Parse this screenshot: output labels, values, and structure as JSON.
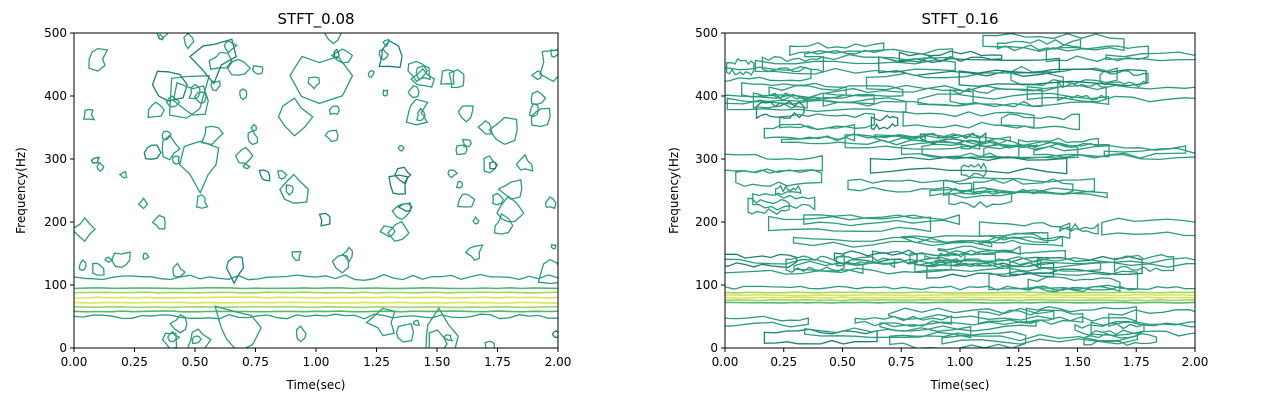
{
  "chart_data": [
    {
      "type": "contour",
      "title": "STFT_0.08",
      "xlabel": "Time(sec)",
      "ylabel": "Frequency(Hz)",
      "xlim": [
        0,
        2
      ],
      "ylim": [
        0,
        500
      ],
      "x_ticks": [
        "0.00",
        "0.25",
        "0.50",
        "0.75",
        "1.00",
        "1.25",
        "1.50",
        "1.75",
        "2.00"
      ],
      "y_ticks": [
        "0",
        "100",
        "200",
        "300",
        "400",
        "500"
      ],
      "colormap": "viridis",
      "contour_colors": [
        "#1b7f79",
        "#2a9d7a",
        "#57b86c",
        "#a4d466",
        "#d8e65a"
      ],
      "dominant_band_hz": [
        55,
        100
      ],
      "dominant_band_lines_hz": [
        58,
        65,
        72,
        80,
        88,
        95
      ],
      "noise_floor_boundary_hz": 112
    },
    {
      "type": "contour",
      "title": "STFT_0.16",
      "xlabel": "Time(sec)",
      "ylabel": "Frequency(Hz)",
      "xlim": [
        0,
        2
      ],
      "ylim": [
        0,
        500
      ],
      "x_ticks": [
        "0.00",
        "0.25",
        "0.50",
        "0.75",
        "1.00",
        "1.25",
        "1.50",
        "1.75",
        "2.00"
      ],
      "y_ticks": [
        "0",
        "100",
        "200",
        "300",
        "400",
        "500"
      ],
      "colormap": "viridis",
      "contour_colors": [
        "#1b7f79",
        "#2a9d7a",
        "#57b86c",
        "#a4d466",
        "#d8e65a"
      ],
      "dominant_band_hz": [
        70,
        92
      ],
      "dominant_band_lines_hz": [
        72,
        76,
        80,
        84,
        88
      ],
      "noise_floor_boundary_hz": 95
    }
  ]
}
